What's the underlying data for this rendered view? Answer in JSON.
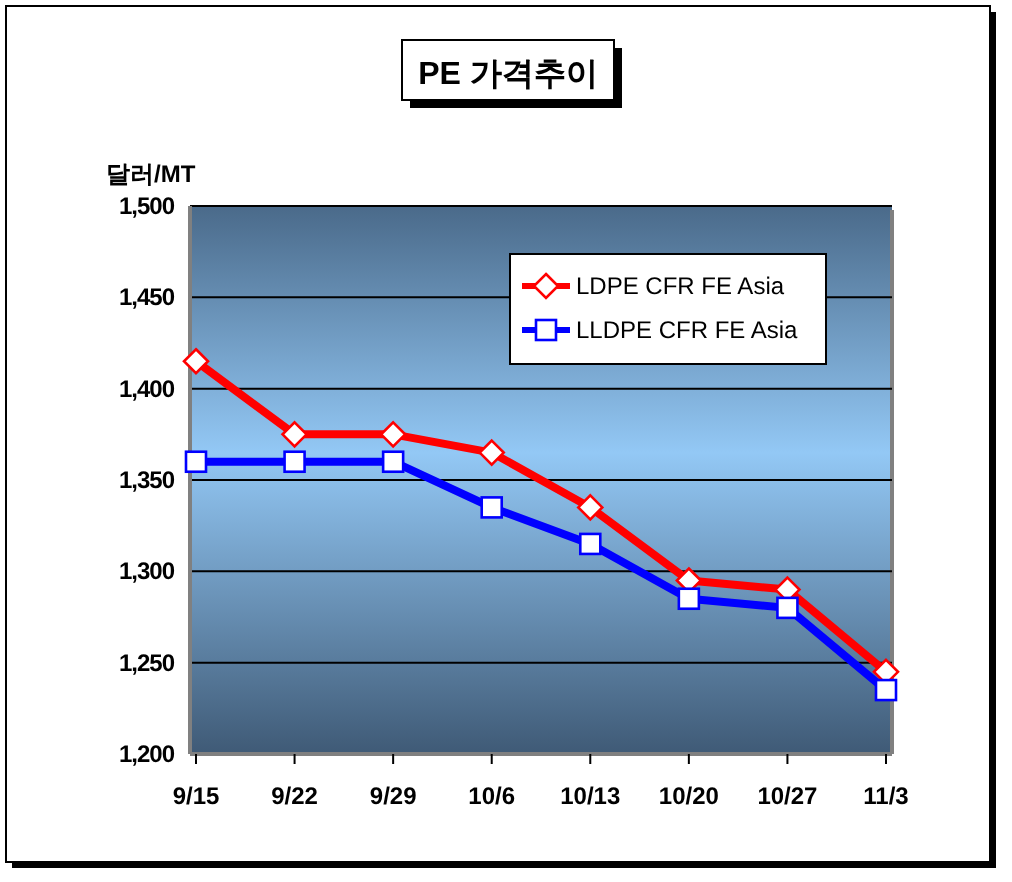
{
  "chart_data": {
    "type": "line",
    "title": "PE 가격추이",
    "ylabel": "달러/MT",
    "categories": [
      "9/15",
      "9/22",
      "9/29",
      "10/6",
      "10/13",
      "10/20",
      "10/27",
      "11/3"
    ],
    "series": [
      {
        "name": "LDPE CFR FE Asia",
        "color": "#ff0000",
        "marker": "diamond",
        "values": [
          1415,
          1375,
          1375,
          1365,
          1335,
          1295,
          1290,
          1245
        ]
      },
      {
        "name": "LLDPE CFR FE Asia",
        "color": "#0000ff",
        "marker": "square",
        "values": [
          1360,
          1360,
          1360,
          1335,
          1315,
          1285,
          1280,
          1235
        ]
      }
    ],
    "ylim": [
      1200,
      1500
    ],
    "yticks": [
      {
        "value": 1200,
        "label": "1,200"
      },
      {
        "value": 1250,
        "label": "1,250"
      },
      {
        "value": 1300,
        "label": "1,300"
      },
      {
        "value": 1350,
        "label": "1,350"
      },
      {
        "value": 1400,
        "label": "1,400"
      },
      {
        "value": 1450,
        "label": "1,450"
      },
      {
        "value": 1500,
        "label": "1,500"
      }
    ],
    "grid": "y",
    "legend": "top right",
    "line_style": "solid"
  }
}
